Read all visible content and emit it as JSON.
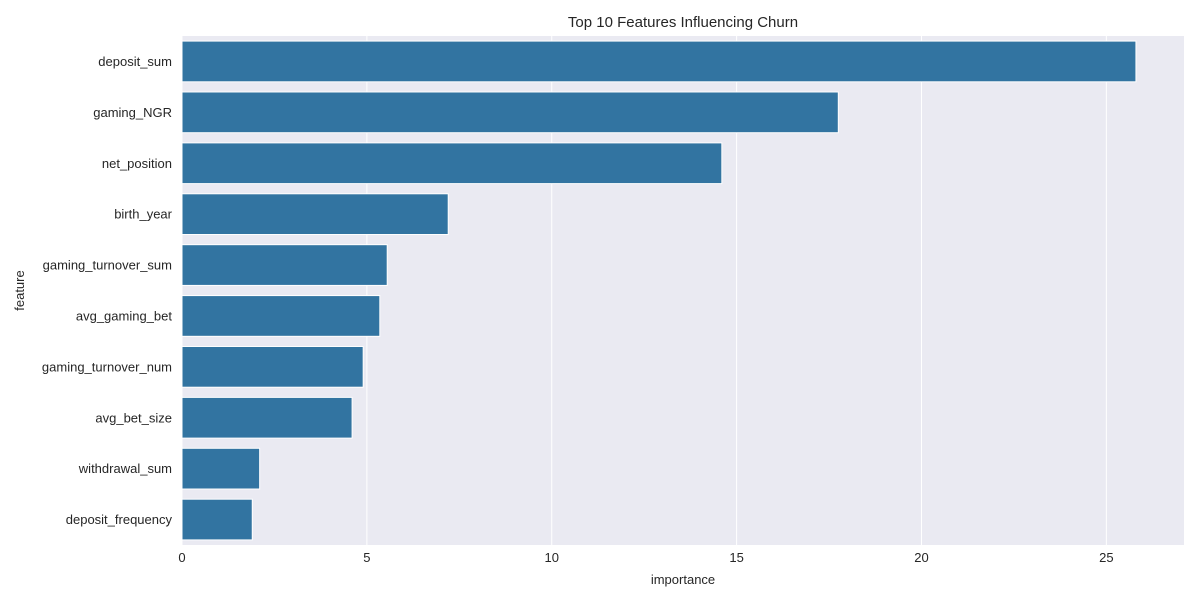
{
  "chart_data": {
    "type": "bar",
    "orientation": "horizontal",
    "title": "Top 10 Features Influencing Churn",
    "xlabel": "importance",
    "ylabel": "feature",
    "categories": [
      "deposit_sum",
      "gaming_NGR",
      "net_position",
      "birth_year",
      "gaming_turnover_sum",
      "avg_gaming_bet",
      "gaming_turnover_num",
      "avg_bet_size",
      "withdrawal_sum",
      "deposit_frequency"
    ],
    "values": [
      25.8,
      17.75,
      14.6,
      7.2,
      5.55,
      5.35,
      4.9,
      4.6,
      2.1,
      1.9
    ],
    "xlim": [
      0,
      27.1
    ],
    "xticks": [
      0,
      5,
      10,
      15,
      20,
      25
    ],
    "xtick_labels": [
      "0",
      "5",
      "10",
      "15",
      "20",
      "25"
    ],
    "grid": true,
    "colors": {
      "bar": "#3274a1",
      "plot_background": "#eaeaf2",
      "grid": "#ffffff",
      "text": "#262626"
    }
  }
}
